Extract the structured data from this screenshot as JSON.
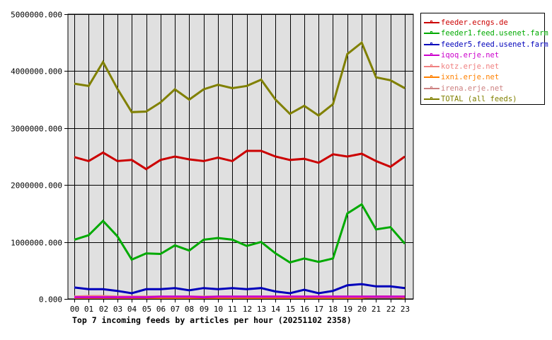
{
  "chart_data": {
    "type": "line",
    "title": "Top 7 incoming feeds by articles per hour (20251102 2358)",
    "xlabel": "",
    "ylabel": "",
    "ylim": [
      0,
      5000000
    ],
    "grid": true,
    "legend_position": "right",
    "x": [
      "00",
      "01",
      "02",
      "03",
      "04",
      "05",
      "06",
      "07",
      "08",
      "09",
      "10",
      "11",
      "12",
      "13",
      "14",
      "15",
      "16",
      "17",
      "18",
      "19",
      "20",
      "21",
      "22",
      "23"
    ],
    "y_ticks": [
      "0.000",
      "1000000.000",
      "2000000.000",
      "3000000.000",
      "4000000.000",
      "5000000.000"
    ],
    "y_tick_values": [
      0,
      1000000,
      2000000,
      3000000,
      4000000,
      5000000
    ],
    "series": [
      {
        "name": "feeder.ecngs.de",
        "color": "#cc0000",
        "values": [
          2490000,
          2420000,
          2570000,
          2420000,
          2440000,
          2280000,
          2440000,
          2500000,
          2450000,
          2420000,
          2480000,
          2420000,
          2600000,
          2600000,
          2500000,
          2440000,
          2460000,
          2390000,
          2540000,
          2500000,
          2550000,
          2420000,
          2320000,
          2500000
        ]
      },
      {
        "name": "feeder1.feed.usenet.farm",
        "color": "#00aa00",
        "values": [
          1040000,
          1120000,
          1370000,
          1100000,
          690000,
          800000,
          790000,
          940000,
          850000,
          1040000,
          1070000,
          1040000,
          930000,
          1000000,
          800000,
          640000,
          710000,
          650000,
          710000,
          1500000,
          1660000,
          1220000,
          1260000,
          970000
        ]
      },
      {
        "name": "feeder5.feed.usenet.farm",
        "color": "#0000bb",
        "values": [
          200000,
          170000,
          170000,
          140000,
          100000,
          170000,
          170000,
          190000,
          150000,
          190000,
          170000,
          190000,
          170000,
          190000,
          130000,
          100000,
          160000,
          100000,
          140000,
          240000,
          260000,
          220000,
          220000,
          190000
        ]
      },
      {
        "name": "iqoq.erje.net",
        "color": "#cc00cc",
        "values": [
          30000,
          30000,
          30000,
          30000,
          30000,
          30000,
          40000,
          40000,
          40000,
          30000,
          40000,
          40000,
          40000,
          40000,
          40000,
          40000,
          40000,
          40000,
          40000,
          40000,
          40000,
          40000,
          40000,
          40000
        ]
      },
      {
        "name": "kotz.erje.net",
        "color": "#f08080",
        "values": [
          40000,
          50000,
          50000,
          40000,
          40000,
          40000,
          40000,
          40000,
          40000,
          40000,
          40000,
          40000,
          40000,
          40000,
          40000,
          40000,
          40000,
          40000,
          40000,
          40000,
          40000,
          40000,
          40000,
          40000
        ]
      },
      {
        "name": "ixni.erje.net",
        "color": "#ff8000",
        "values": [
          20000,
          20000,
          20000,
          20000,
          20000,
          20000,
          20000,
          20000,
          20000,
          20000,
          20000,
          20000,
          20000,
          20000,
          20000,
          20000,
          20000,
          20000,
          20000,
          20000,
          20000,
          40000,
          40000,
          20000
        ]
      },
      {
        "name": "irena.erje.net",
        "color": "#cc8080",
        "values": [
          25000,
          25000,
          25000,
          25000,
          25000,
          25000,
          25000,
          25000,
          25000,
          25000,
          25000,
          25000,
          25000,
          25000,
          25000,
          25000,
          25000,
          25000,
          25000,
          25000,
          25000,
          25000,
          25000,
          25000
        ]
      },
      {
        "name": "TOTAL (all feeds)",
        "color": "#808000",
        "values": [
          3780000,
          3740000,
          4160000,
          3690000,
          3280000,
          3290000,
          3450000,
          3680000,
          3500000,
          3680000,
          3760000,
          3700000,
          3740000,
          3850000,
          3500000,
          3250000,
          3390000,
          3220000,
          3420000,
          4300000,
          4500000,
          3890000,
          3840000,
          3700000
        ]
      }
    ]
  },
  "plot": {
    "background": "#e0e0e0",
    "grid_color": "#000000"
  }
}
